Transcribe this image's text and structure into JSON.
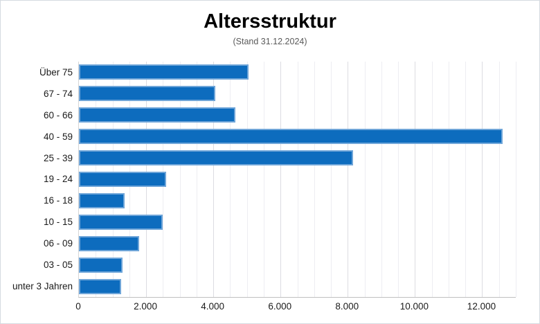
{
  "window": {
    "background_color": "#ffffff",
    "border_color": "#d5dae0"
  },
  "header": {
    "title": "Altersstruktur",
    "subtitle": "(Stand 31.12.2024)"
  },
  "chart_data": {
    "type": "bar",
    "orientation": "horizontal",
    "title": "Altersstruktur",
    "subtitle": "(Stand 31.12.2024)",
    "categories": [
      "Über 75",
      "67 - 74",
      "60 - 66",
      "40 - 59",
      "25 - 39",
      "19 - 24",
      "16 - 18",
      "10 - 15",
      "06 - 09",
      "03 - 05",
      "unter 3 Jahren"
    ],
    "values": [
      5050,
      4050,
      4650,
      12600,
      8150,
      2600,
      1350,
      2500,
      1800,
      1300,
      1250
    ],
    "xlabel": "",
    "ylabel": "",
    "xlim": [
      0,
      13000
    ],
    "x_tick_interval": 2000,
    "x_minor_gridline_interval": 500,
    "x_tick_labels": [
      "0",
      "2.000",
      "4.000",
      "6.000",
      "8.000",
      "10.000",
      "12.000"
    ],
    "bar_color": "#0d6cbe",
    "bar_border_color": "#92bae2",
    "grid": true,
    "legend": false,
    "legend_position": "none"
  }
}
